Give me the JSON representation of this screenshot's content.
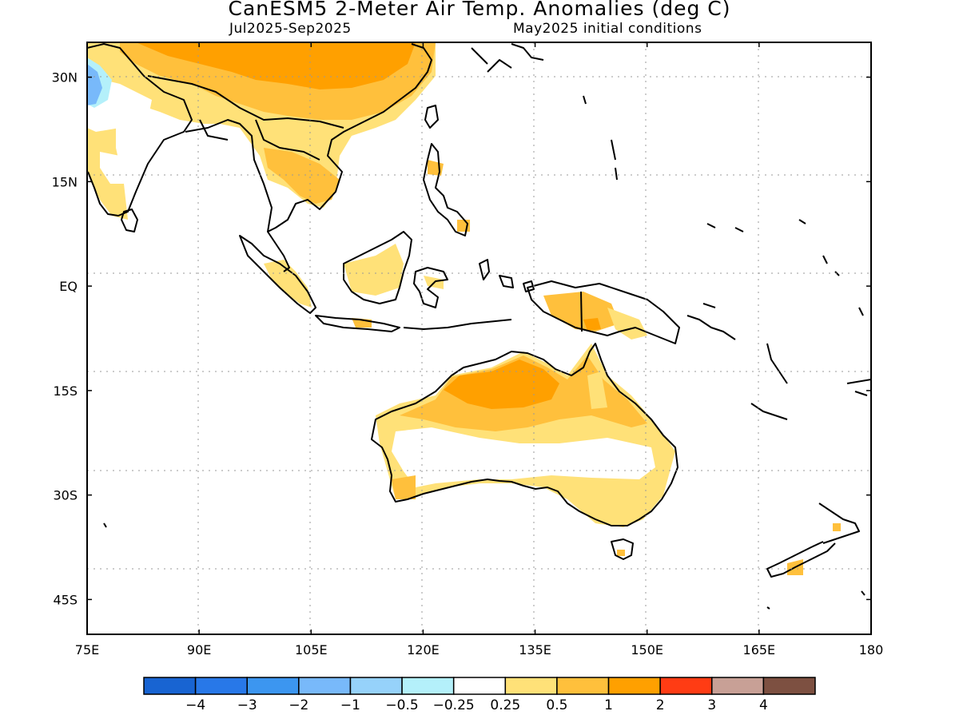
{
  "header": {
    "title": "CanESM5 2-Meter Air Temp. Anomalies (deg C)",
    "period": "Jul2025-Sep2025",
    "init": "May2025 initial conditions"
  },
  "map": {
    "lon_range": [
      75,
      180
    ],
    "lat_range": [
      -50,
      35
    ],
    "lon_ticks": [
      "75E",
      "90E",
      "105E",
      "120E",
      "135E",
      "150E",
      "165E",
      "180"
    ],
    "lon_tick_values": [
      75,
      90,
      105,
      120,
      135,
      150,
      165,
      180
    ],
    "lat_ticks": [
      "30N",
      "15N",
      "EQ",
      "15S",
      "30S",
      "45S"
    ],
    "lat_tick_values": [
      30,
      15,
      0,
      -15,
      -30,
      -45
    ],
    "grid": "dotted"
  },
  "colorbar": {
    "colors": [
      "#1864d2",
      "#2878e8",
      "#3c96f0",
      "#78b9fa",
      "#96d2fa",
      "#b4f0fa",
      "#ffffff",
      "#ffe178",
      "#ffc03c",
      "#ffa000",
      "#ff3c14",
      "#c8a096",
      "#7d5041"
    ],
    "labels": [
      "-4",
      "-3",
      "-2",
      "-1",
      "-0.5",
      "-0.25",
      "0.25",
      "0.5",
      "1",
      "2",
      "3",
      "4"
    ]
  },
  "legend_colors": {
    "weak_warm": "#ffe178",
    "moderate_warm": "#ffc03c",
    "strong_warm": "#ffa000",
    "weak_cool": "#b4f0fa",
    "cool": "#78b9fa"
  }
}
